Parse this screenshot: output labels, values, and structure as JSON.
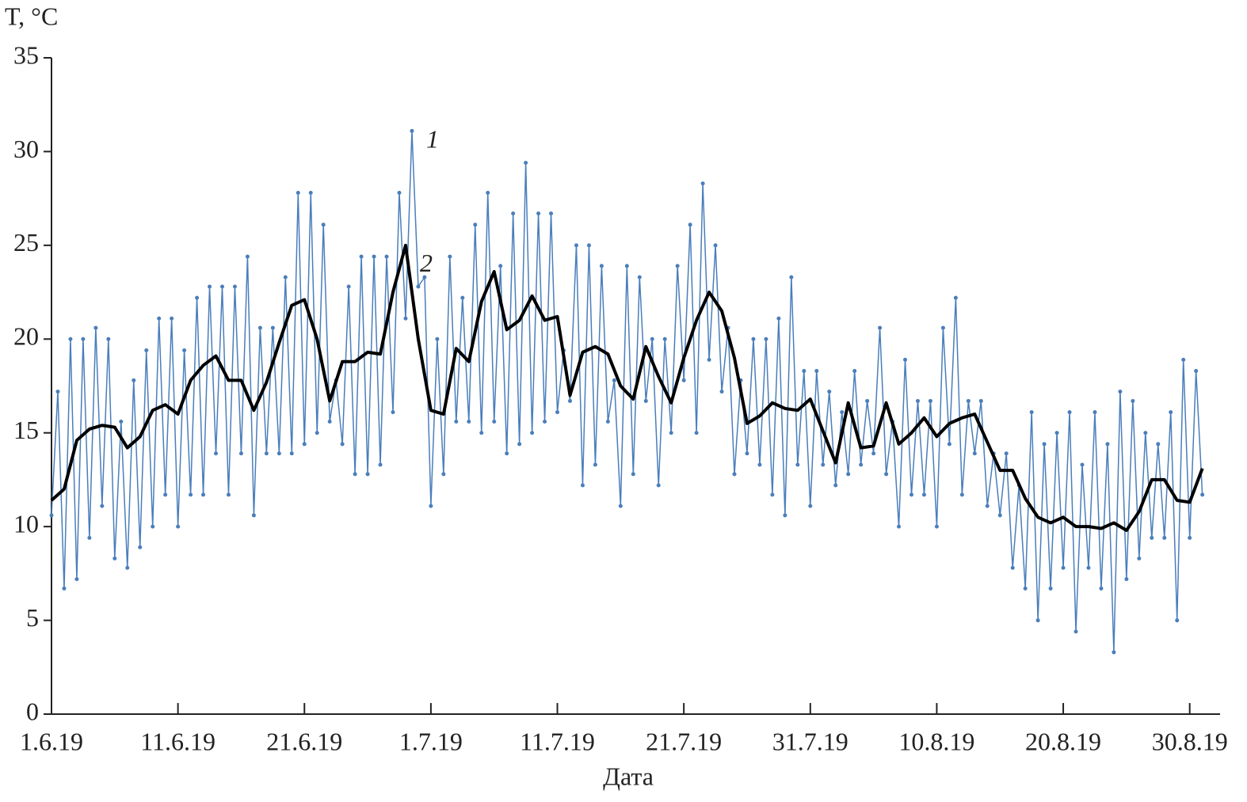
{
  "chart_data": {
    "type": "line",
    "ylabel": "T, °C",
    "xlabel": "Дата",
    "xlim": [
      0,
      92.4
    ],
    "ylim": [
      0,
      35
    ],
    "yticks": [
      0,
      5,
      10,
      15,
      20,
      25,
      30,
      35
    ],
    "xticks": [
      {
        "value": 0,
        "label": "1.6.19"
      },
      {
        "value": 10,
        "label": "11.6.19"
      },
      {
        "value": 20,
        "label": "21.6.19"
      },
      {
        "value": 30,
        "label": "1.7.19"
      },
      {
        "value": 40,
        "label": "11.7.19"
      },
      {
        "value": 50,
        "label": "21.7.19"
      },
      {
        "value": 60,
        "label": "31.7.19"
      },
      {
        "value": 70,
        "label": "10.8.19"
      },
      {
        "value": 80,
        "label": "20.8.19"
      },
      {
        "value": 90,
        "label": "30.8.19"
      }
    ],
    "series": [
      {
        "name": "1",
        "color": "#4a7ebb",
        "markers": true,
        "width": 1.5,
        "x": [
          0,
          0.5,
          1,
          1.5,
          2,
          2.5,
          3,
          3.5,
          4,
          4.5,
          5,
          5.5,
          6,
          6.5,
          7,
          7.5,
          8,
          8.5,
          9,
          9.5,
          10,
          10.5,
          11,
          11.5,
          12,
          12.5,
          13,
          13.5,
          14,
          14.5,
          15,
          15.5,
          16,
          16.5,
          17,
          17.5,
          18,
          18.5,
          19,
          19.5,
          20,
          20.5,
          21,
          21.5,
          22,
          22.5,
          23,
          23.5,
          24,
          24.5,
          25,
          25.5,
          26,
          26.5,
          27,
          27.5,
          28,
          28.5,
          29,
          29.5,
          30,
          30.5,
          31,
          31.5,
          32,
          32.5,
          33,
          33.5,
          34,
          34.5,
          35,
          35.5,
          36,
          36.5,
          37,
          37.5,
          38,
          38.5,
          39,
          39.5,
          40,
          40.5,
          41,
          41.5,
          42,
          42.5,
          43,
          43.5,
          44,
          44.5,
          45,
          45.5,
          46,
          46.5,
          47,
          47.5,
          48,
          48.5,
          49,
          49.5,
          50,
          50.5,
          51,
          51.5,
          52,
          52.5,
          53,
          53.5,
          54,
          54.5,
          55,
          55.5,
          56,
          56.5,
          57,
          57.5,
          58,
          58.5,
          59,
          59.5,
          60,
          60.5,
          61,
          61.5,
          62,
          62.5,
          63,
          63.5,
          64,
          64.5,
          65,
          65.5,
          66,
          66.5,
          67,
          67.5,
          68,
          68.5,
          69,
          69.5,
          70,
          70.5,
          71,
          71.5,
          72,
          72.5,
          73,
          73.5,
          74,
          74.5,
          75,
          75.5,
          76,
          76.5,
          77,
          77.5,
          78,
          78.5,
          79,
          79.5,
          80,
          80.5,
          81,
          81.5,
          82,
          82.5,
          83,
          83.5,
          84,
          84.5,
          85,
          85.5,
          86,
          86.5,
          87,
          87.5,
          88,
          88.5,
          89,
          89.5,
          90,
          90.5,
          91
        ],
        "values": [
          10.6,
          17.2,
          6.7,
          20.0,
          7.2,
          20.0,
          9.4,
          20.6,
          11.1,
          20.0,
          8.3,
          15.6,
          7.8,
          17.8,
          8.9,
          19.4,
          10.0,
          21.1,
          11.7,
          21.1,
          10.0,
          19.4,
          11.7,
          22.2,
          11.7,
          22.8,
          13.9,
          22.8,
          11.7,
          22.8,
          13.9,
          24.4,
          10.6,
          20.6,
          13.9,
          20.6,
          13.9,
          23.3,
          13.9,
          27.8,
          14.4,
          27.8,
          15.0,
          26.1,
          15.6,
          17.8,
          14.4,
          22.8,
          12.8,
          24.4,
          12.8,
          24.4,
          13.3,
          24.4,
          16.1,
          27.8,
          21.1,
          31.1,
          22.8,
          23.3,
          11.1,
          20.0,
          12.8,
          24.4,
          15.6,
          22.2,
          15.6,
          26.1,
          15.0,
          27.8,
          15.6,
          23.9,
          13.9,
          26.7,
          14.4,
          29.4,
          15.0,
          26.7,
          15.6,
          26.7,
          16.1,
          19.4,
          16.7,
          25.0,
          12.2,
          25.0,
          13.3,
          23.9,
          15.6,
          17.8,
          11.1,
          23.9,
          12.8,
          23.3,
          16.7,
          20.0,
          12.2,
          20.0,
          15.0,
          23.9,
          17.8,
          26.1,
          15.0,
          28.3,
          18.9,
          25.0,
          17.2,
          20.6,
          12.8,
          17.8,
          13.9,
          20.0,
          13.3,
          20.0,
          11.7,
          21.1,
          10.6,
          23.3,
          13.3,
          18.3,
          11.1,
          18.3,
          13.3,
          17.2,
          12.2,
          16.1,
          12.8,
          18.3,
          13.3,
          16.7,
          13.9,
          20.6,
          12.8,
          15.6,
          10.0,
          18.9,
          11.7,
          16.7,
          11.7,
          16.7,
          10.0,
          20.6,
          14.4,
          22.2,
          11.7,
          16.7,
          13.9,
          16.7,
          11.1,
          13.9,
          10.6,
          13.9,
          7.8,
          12.2,
          6.7,
          16.1,
          5.0,
          14.4,
          6.7,
          15.0,
          7.8,
          16.1,
          4.4,
          13.3,
          7.8,
          16.1,
          6.7,
          14.4,
          3.3,
          17.2,
          7.2,
          16.7,
          8.3,
          15.0,
          9.4,
          14.4,
          9.4,
          16.1,
          5.0,
          18.9,
          9.4,
          18.3,
          11.7
        ]
      },
      {
        "name": "2",
        "color": "#000000",
        "markers": false,
        "width": 4,
        "x": [
          0,
          1,
          2,
          3,
          4,
          5,
          6,
          7,
          8,
          9,
          10,
          11,
          12,
          13,
          14,
          15,
          16,
          17,
          18,
          19,
          20,
          21,
          22,
          23,
          24,
          25,
          26,
          27,
          28,
          29,
          30,
          31,
          32,
          33,
          34,
          35,
          36,
          37,
          38,
          39,
          40,
          41,
          42,
          43,
          44,
          45,
          46,
          47,
          48,
          49,
          50,
          51,
          52,
          53,
          54,
          55,
          56,
          57,
          58,
          59,
          60,
          61,
          62,
          63,
          64,
          65,
          66,
          67,
          68,
          69,
          70,
          71,
          72,
          73,
          74,
          75,
          76,
          77,
          78,
          79,
          80,
          81,
          82,
          83,
          84,
          85,
          86,
          87,
          88,
          89,
          90,
          91
        ],
        "values": [
          11.4,
          12.0,
          14.6,
          15.2,
          15.4,
          15.3,
          14.2,
          14.8,
          16.2,
          16.5,
          16.0,
          17.8,
          18.6,
          19.1,
          17.8,
          17.8,
          16.2,
          17.7,
          19.8,
          21.8,
          22.1,
          20.0,
          16.7,
          18.8,
          18.8,
          19.3,
          19.2,
          22.5,
          25.0,
          20.0,
          16.2,
          16.0,
          19.5,
          18.8,
          22.0,
          23.6,
          20.5,
          21.0,
          22.3,
          21.0,
          21.2,
          17.0,
          19.3,
          19.6,
          19.2,
          17.5,
          16.8,
          19.6,
          18.0,
          16.6,
          19.0,
          21.0,
          22.5,
          21.5,
          19.0,
          15.5,
          15.9,
          16.6,
          16.3,
          16.2,
          16.8,
          15.1,
          13.4,
          16.6,
          14.2,
          14.3,
          16.6,
          14.4,
          15.0,
          15.8,
          14.8,
          15.5,
          15.8,
          16.0,
          14.5,
          13.0,
          13.0,
          11.5,
          10.5,
          10.2,
          10.5,
          10.0,
          10.0,
          9.9,
          10.2,
          9.8,
          10.8,
          12.5,
          12.5,
          11.4,
          11.3,
          13.1
        ]
      }
    ]
  }
}
